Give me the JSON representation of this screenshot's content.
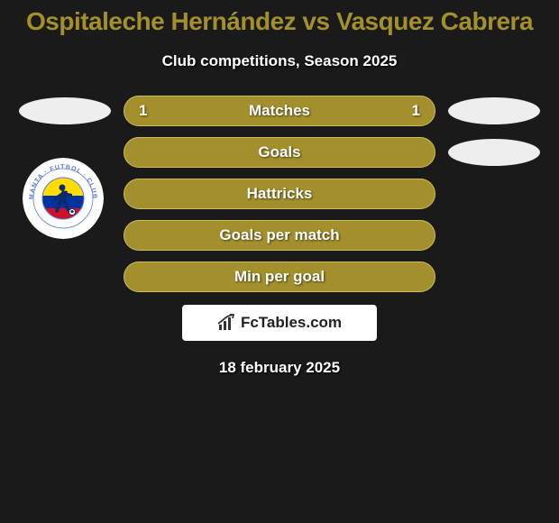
{
  "title": "Ospitaleche Hernández vs Vasquez Cabrera",
  "subtitle": "Club competitions, Season 2025",
  "colors": {
    "background": "#1a1a1a",
    "title_color": "#a3902c",
    "subtitle_color": "#ffffff",
    "pill_fill": "#a3902c",
    "pill_border": "#cfbf5a",
    "pill_text": "#ffffff",
    "side_oval": "#eeeeee",
    "badge_bg": "#ffffff",
    "date_color": "#ffffff",
    "brand_bg": "#ffffff",
    "brand_text": "#222222"
  },
  "rows": [
    {
      "label": "Matches",
      "left": "1",
      "right": "1",
      "show_left_oval": true,
      "show_right_oval": true
    },
    {
      "label": "Goals",
      "left": "",
      "right": "",
      "show_left_oval": false,
      "show_right_oval": true
    },
    {
      "label": "Hattricks",
      "left": "",
      "right": "",
      "show_left_oval": false,
      "show_right_oval": false
    },
    {
      "label": "Goals per match",
      "left": "",
      "right": "",
      "show_left_oval": false,
      "show_right_oval": false
    },
    {
      "label": "Min per goal",
      "left": "",
      "right": "",
      "show_left_oval": false,
      "show_right_oval": false
    }
  ],
  "brand": "FcTables.com",
  "date": "18 february 2025",
  "badge": {
    "outer_text": "MANTA · FUTBOL · CLUB",
    "ring_color": "#ffffff",
    "text_color": "#5b7bd6",
    "flag_yellow": "#ffdd00",
    "flag_blue": "#0033a0",
    "flag_red": "#ce1126",
    "figure_color": "#0a2a6b"
  }
}
